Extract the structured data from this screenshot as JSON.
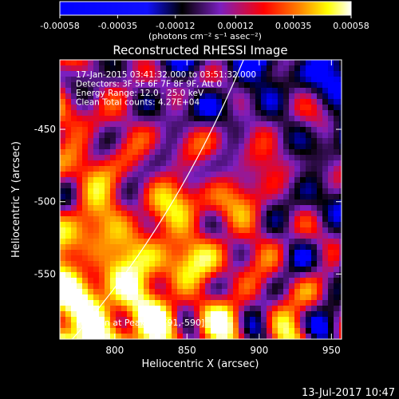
{
  "colorbar": {
    "ticks": [
      "-0.00058",
      "-0.00035",
      "-0.00012",
      "0.00012",
      "0.00035",
      "0.00058"
    ],
    "tick_values": [
      -0.00058,
      -0.00035,
      -0.00012,
      0.00012,
      0.00035,
      0.00058
    ],
    "units_label": "(photons cm⁻² s⁻¹ asec⁻²)"
  },
  "chart_data": {
    "type": "heatmap",
    "title": "Reconstructed RHESSI Image",
    "xlabel": "Heliocentric X (arcsec)",
    "ylabel": "Heliocentric Y (arcsec)",
    "xlim": [
      762,
      957
    ],
    "ylim": [
      -595,
      -402
    ],
    "x_ticks": [
      800,
      850,
      900,
      950
    ],
    "y_ticks": [
      -450,
      -500,
      -550
    ],
    "value_range": [
      -0.00058,
      0.00058
    ],
    "annotation_lines": [
      "17-Jan-2015 03:41:32.000 to 03:51:32.000",
      "Detectors: 3F 5F 6F 7F 8F 9F, Att 0",
      "Energy Range: 12.0 - 25.0 keV",
      "Clean      Total counts: 4.27E+04"
    ],
    "peak_label": "Position at Peak = [791,-590]",
    "peak_position": [
      791,
      -590
    ],
    "colormap": [
      "#0000ff",
      "#0000ff",
      "#000000",
      "#7a1fc0",
      "#ff0000",
      "#ff8000",
      "#ffff00",
      "#ffffff"
    ]
  },
  "timestamp": "13-Jul-2017 10:47"
}
